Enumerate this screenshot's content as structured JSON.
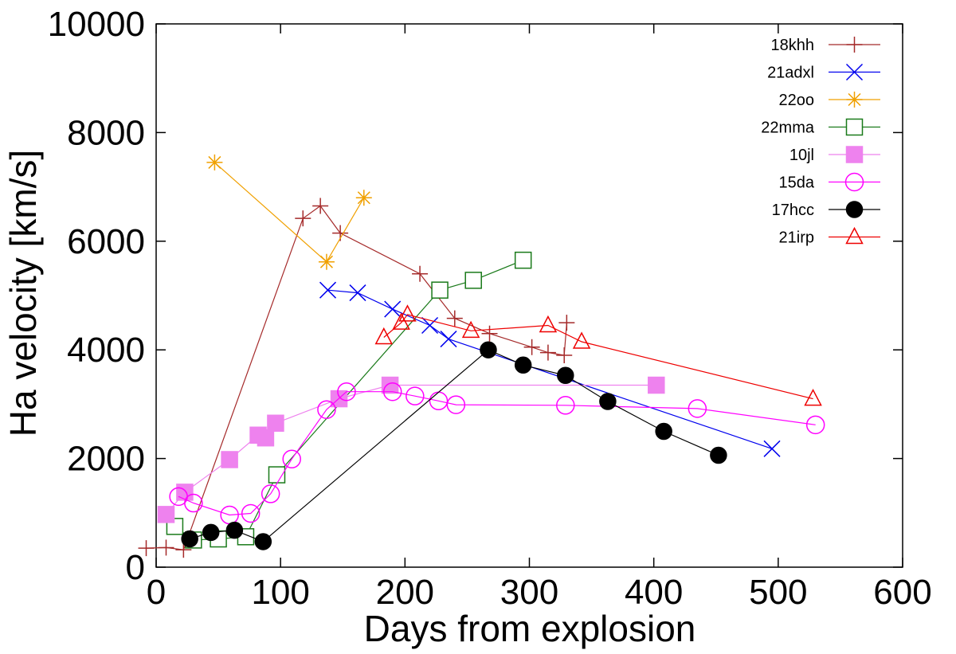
{
  "chart_data": {
    "type": "line",
    "xlabel": "Days from explosion",
    "ylabel": "Ha velocity [km/s]",
    "xlim": [
      0,
      600
    ],
    "ylim": [
      0,
      10000
    ],
    "x_ticks": [
      0,
      100,
      200,
      300,
      400,
      500,
      600
    ],
    "y_ticks": [
      0,
      2000,
      4000,
      6000,
      8000,
      10000
    ],
    "grid": false,
    "legend_position": "top-right",
    "series": [
      {
        "name": "18khh",
        "color": "#a52a2a",
        "marker": "plus",
        "x": [
          -8,
          8,
          22,
          118,
          132,
          148,
          212,
          240,
          268,
          302,
          315,
          328,
          330
        ],
        "y": [
          350,
          360,
          320,
          6420,
          6650,
          6150,
          5400,
          4580,
          4300,
          4050,
          3950,
          3900,
          4500
        ]
      },
      {
        "name": "21adxl",
        "color": "#0000ee",
        "marker": "x",
        "x": [
          138,
          162,
          190,
          220,
          235,
          495
        ],
        "y": [
          5100,
          5050,
          4750,
          4450,
          4200,
          2180
        ]
      },
      {
        "name": "22oo",
        "color": "#f0a000",
        "marker": "star",
        "x": [
          47,
          137,
          167
        ],
        "y": [
          7450,
          5620,
          6800
        ]
      },
      {
        "name": "22mma",
        "color": "#1a7a1a",
        "marker": "square-open",
        "x": [
          15,
          30,
          50,
          72,
          97,
          228,
          255,
          295
        ],
        "y": [
          750,
          500,
          520,
          560,
          1700,
          5100,
          5280,
          5650
        ]
      },
      {
        "name": "10jl",
        "color": "#ee82ee",
        "marker": "square-filled",
        "x": [
          8,
          23,
          59,
          82,
          88,
          96,
          147,
          188,
          402
        ],
        "y": [
          970,
          1380,
          1980,
          2430,
          2380,
          2650,
          3100,
          3350,
          3350
        ]
      },
      {
        "name": "15da",
        "color": "#ff00ff",
        "marker": "circle-open",
        "x": [
          18,
          30,
          59,
          76,
          92,
          109,
          137,
          153,
          190,
          208,
          227,
          241,
          329,
          435,
          530
        ],
        "y": [
          1300,
          1180,
          960,
          990,
          1350,
          1990,
          2900,
          3230,
          3230,
          3150,
          3060,
          2990,
          2980,
          2920,
          2620
        ]
      },
      {
        "name": "17hcc",
        "color": "#000000",
        "marker": "circle-filled",
        "x": [
          27,
          44,
          63,
          86,
          267,
          295,
          329,
          363,
          408,
          452
        ],
        "y": [
          520,
          640,
          680,
          470,
          4000,
          3720,
          3530,
          3050,
          2500,
          2060
        ]
      },
      {
        "name": "21irp",
        "color": "#ee0000",
        "marker": "triangle-open",
        "x": [
          183,
          197,
          202,
          253,
          315,
          342,
          528
        ],
        "y": [
          4230,
          4500,
          4650,
          4350,
          4450,
          4150,
          3100
        ]
      }
    ]
  }
}
